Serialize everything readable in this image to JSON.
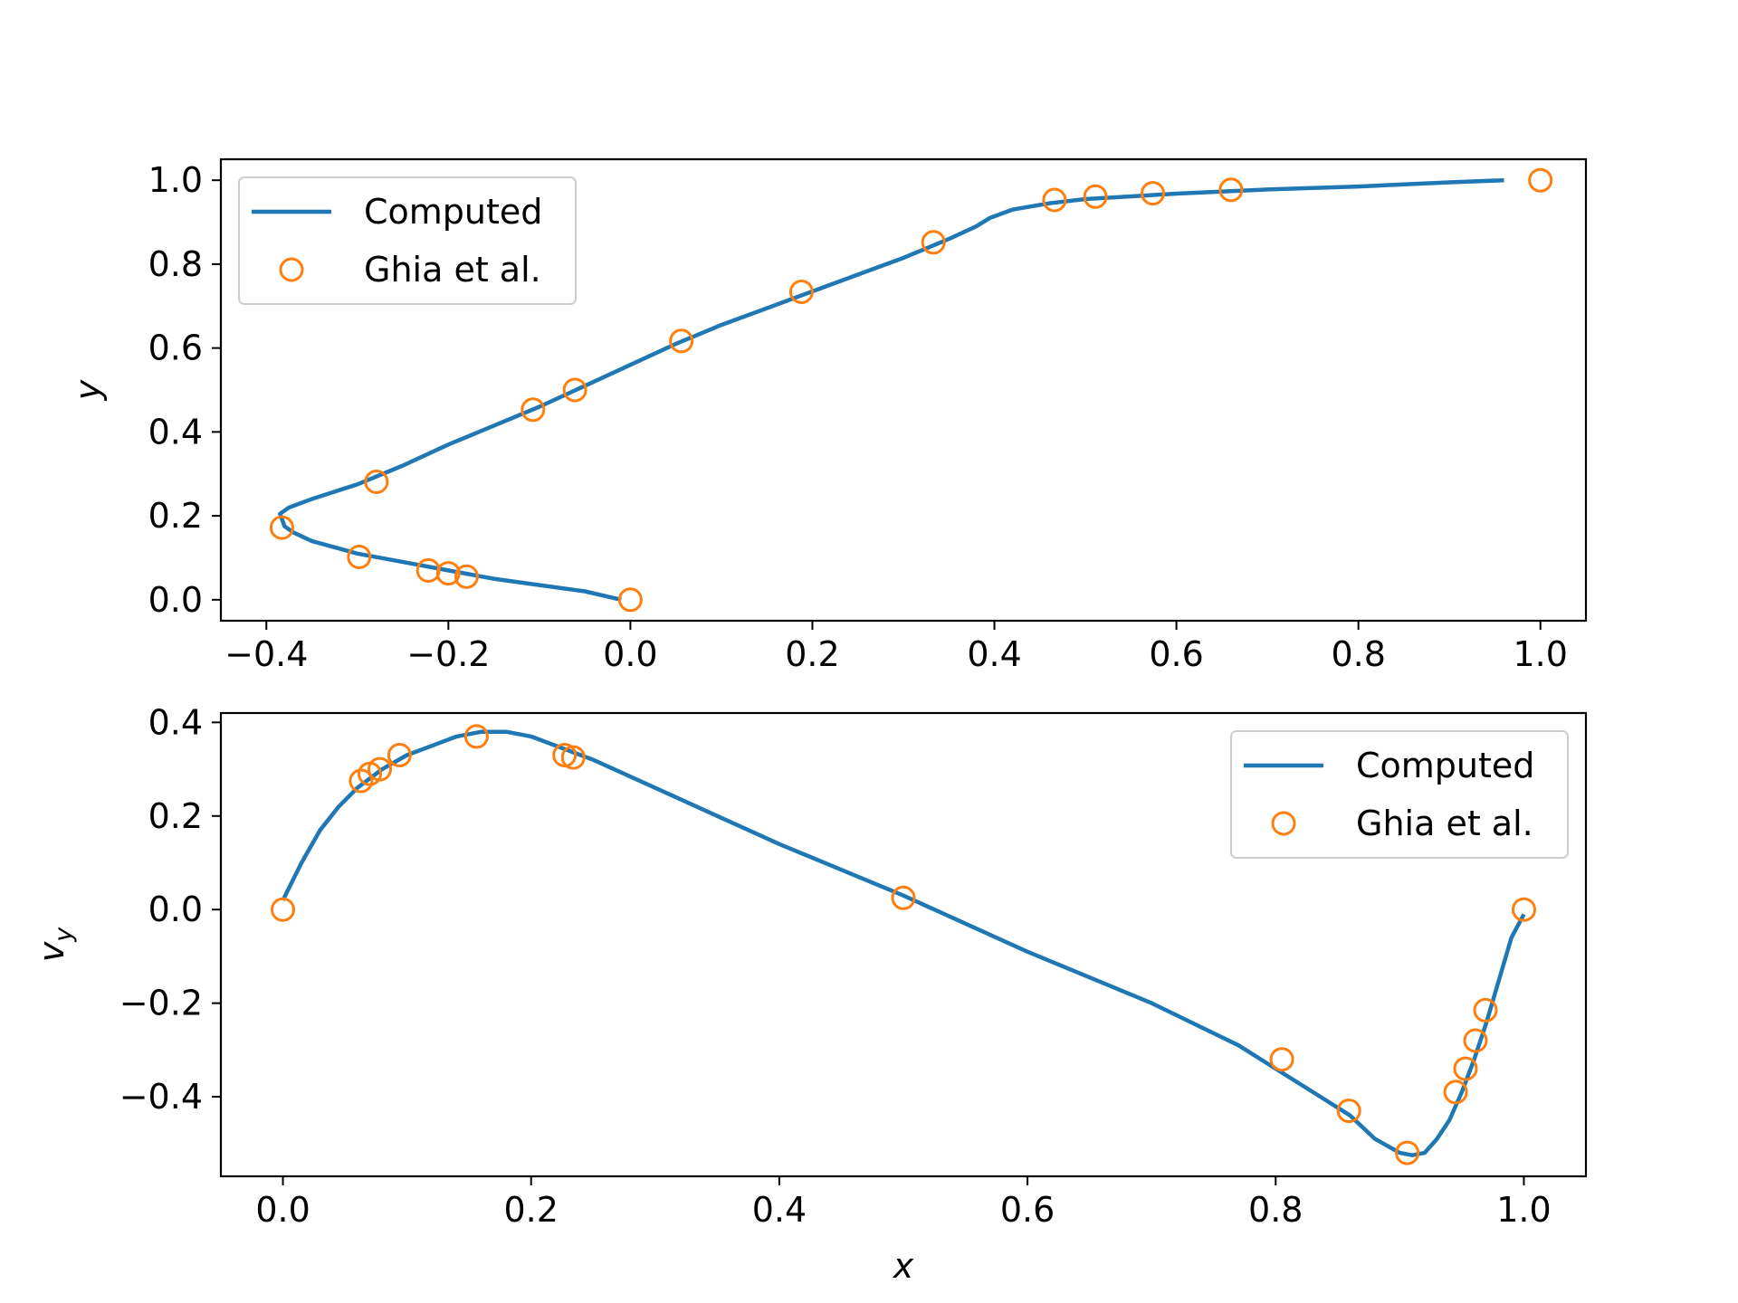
{
  "chart_data": [
    {
      "type": "line",
      "xlabel": "",
      "ylabel": "y",
      "xlim": [
        -0.45,
        1.05
      ],
      "ylim": [
        -0.05,
        1.05
      ],
      "x_ticks": [
        "−0.4",
        "−0.2",
        "0.0",
        "0.2",
        "0.4",
        "0.6",
        "0.8",
        "1.0"
      ],
      "y_ticks": [
        "0.0",
        "0.2",
        "0.4",
        "0.6",
        "0.8",
        "1.0"
      ],
      "grid": false,
      "legend_position": "upper-left",
      "colors": {
        "computed": "#1f77b4",
        "reference": "#ff7f0e"
      },
      "series": [
        {
          "name": "Computed",
          "style": "line",
          "x": [
            -0.01,
            -0.05,
            -0.1,
            -0.15,
            -0.2,
            -0.25,
            -0.3,
            -0.35,
            -0.37,
            -0.38,
            -0.385,
            -0.375,
            -0.35,
            -0.3,
            -0.25,
            -0.2,
            -0.15,
            -0.1,
            -0.05,
            0.0,
            0.05,
            0.1,
            0.15,
            0.2,
            0.25,
            0.3,
            0.35,
            0.38,
            0.395,
            0.42,
            0.46,
            0.5,
            0.6,
            0.7,
            0.8,
            0.9,
            0.96
          ],
          "y": [
            0.0,
            0.02,
            0.035,
            0.05,
            0.07,
            0.09,
            0.11,
            0.14,
            0.16,
            0.175,
            0.205,
            0.22,
            0.24,
            0.275,
            0.32,
            0.37,
            0.415,
            0.46,
            0.51,
            0.56,
            0.61,
            0.655,
            0.695,
            0.735,
            0.775,
            0.815,
            0.86,
            0.89,
            0.91,
            0.93,
            0.945,
            0.955,
            0.968,
            0.978,
            0.985,
            0.995,
            1.0
          ]
        },
        {
          "name": "Ghia et al.",
          "style": "marker",
          "x": [
            0.0,
            -0.18,
            -0.2,
            -0.222,
            -0.298,
            -0.383,
            -0.279,
            -0.107,
            -0.061,
            0.056,
            0.188,
            0.333,
            0.466,
            0.511,
            0.574,
            0.66,
            1.0
          ],
          "y": [
            0.0,
            0.055,
            0.063,
            0.07,
            0.102,
            0.172,
            0.281,
            0.453,
            0.5,
            0.617,
            0.734,
            0.852,
            0.953,
            0.961,
            0.969,
            0.977,
            1.0
          ]
        }
      ]
    },
    {
      "type": "line",
      "xlabel": "x",
      "ylabel": "v",
      "ylabel_subscript": "y",
      "xlim": [
        -0.05,
        1.05
      ],
      "ylim": [
        -0.57,
        0.42
      ],
      "x_ticks": [
        "0.0",
        "0.2",
        "0.4",
        "0.6",
        "0.8",
        "1.0"
      ],
      "y_ticks": [
        "−0.4",
        "−0.2",
        "0.0",
        "0.2",
        "0.4"
      ],
      "grid": false,
      "legend_position": "upper-right",
      "colors": {
        "computed": "#1f77b4",
        "reference": "#ff7f0e"
      },
      "series": [
        {
          "name": "Computed",
          "style": "line",
          "x": [
            0.0,
            0.015,
            0.03,
            0.045,
            0.06,
            0.08,
            0.1,
            0.12,
            0.14,
            0.16,
            0.18,
            0.2,
            0.22,
            0.25,
            0.3,
            0.35,
            0.4,
            0.5,
            0.6,
            0.7,
            0.77,
            0.8,
            0.83,
            0.86,
            0.88,
            0.9,
            0.91,
            0.92,
            0.93,
            0.94,
            0.95,
            0.96,
            0.97,
            0.98,
            0.99,
            1.0
          ],
          "y": [
            0.02,
            0.1,
            0.17,
            0.22,
            0.26,
            0.3,
            0.33,
            0.35,
            0.37,
            0.38,
            0.38,
            0.37,
            0.35,
            0.32,
            0.26,
            0.2,
            0.14,
            0.03,
            -0.09,
            -0.2,
            -0.29,
            -0.34,
            -0.39,
            -0.44,
            -0.49,
            -0.52,
            -0.525,
            -0.52,
            -0.49,
            -0.45,
            -0.39,
            -0.32,
            -0.24,
            -0.15,
            -0.06,
            -0.01
          ]
        },
        {
          "name": "Ghia et al.",
          "style": "marker",
          "x": [
            0.0,
            0.063,
            0.07,
            0.078,
            0.094,
            0.156,
            0.227,
            0.234,
            0.5,
            0.805,
            0.859,
            0.906,
            0.945,
            0.953,
            0.961,
            0.969,
            1.0
          ],
          "y": [
            0.0,
            0.275,
            0.29,
            0.3,
            0.33,
            0.37,
            0.33,
            0.325,
            0.025,
            -0.32,
            -0.43,
            -0.52,
            -0.39,
            -0.34,
            -0.28,
            -0.215,
            0.0
          ]
        }
      ]
    }
  ]
}
